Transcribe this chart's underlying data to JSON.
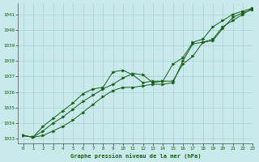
{
  "title": "Graphe pression niveau de la mer (hPa)",
  "background_color": "#c8eaea",
  "grid_color": "#a8d0d0",
  "line_color": "#1a5c1a",
  "xlim": [
    -0.5,
    23
  ],
  "ylim": [
    1032.7,
    1041.7
  ],
  "yticks": [
    1033,
    1034,
    1035,
    1036,
    1037,
    1038,
    1039,
    1040,
    1041
  ],
  "xticks": [
    0,
    1,
    2,
    3,
    4,
    5,
    6,
    7,
    8,
    9,
    10,
    11,
    12,
    13,
    14,
    15,
    16,
    17,
    18,
    19,
    20,
    21,
    22,
    23
  ],
  "series1_x": [
    0,
    1,
    2,
    3,
    4,
    5,
    6,
    7,
    8,
    9,
    10,
    11,
    12,
    13,
    14,
    15,
    16,
    17,
    18,
    19,
    20,
    21,
    22,
    23
  ],
  "series1_y": [
    1033.2,
    1033.1,
    1033.5,
    1034.0,
    1034.4,
    1034.9,
    1035.4,
    1035.8,
    1036.2,
    1036.5,
    1036.9,
    1037.2,
    1037.1,
    1036.6,
    1036.7,
    1036.7,
    1037.8,
    1038.3,
    1039.2,
    1039.4,
    1040.2,
    1040.6,
    1041.0,
    1041.4
  ],
  "series2_x": [
    0,
    1,
    2,
    3,
    4,
    5,
    6,
    7,
    8,
    9,
    10,
    11,
    12,
    13,
    14,
    15,
    16,
    17,
    18,
    19,
    20,
    21,
    22,
    23
  ],
  "series2_y": [
    1033.2,
    1033.1,
    1033.8,
    1034.3,
    1034.8,
    1035.3,
    1035.9,
    1036.2,
    1036.3,
    1037.3,
    1037.4,
    1037.1,
    1036.6,
    1036.7,
    1036.7,
    1037.8,
    1038.2,
    1039.2,
    1039.4,
    1040.2,
    1040.6,
    1041.0,
    1041.2,
    1041.4
  ],
  "series3_x": [
    0,
    1,
    2,
    3,
    4,
    5,
    6,
    7,
    8,
    9,
    10,
    11,
    12,
    13,
    14,
    15,
    16,
    17,
    18,
    19,
    20,
    21,
    22,
    23
  ],
  "series3_y": [
    1033.2,
    1033.1,
    1033.2,
    1033.5,
    1033.8,
    1034.2,
    1034.7,
    1035.2,
    1035.7,
    1036.1,
    1036.3,
    1036.3,
    1036.4,
    1036.5,
    1036.5,
    1036.6,
    1038.0,
    1039.1,
    1039.2,
    1039.3,
    1040.1,
    1040.8,
    1041.1,
    1041.3
  ]
}
